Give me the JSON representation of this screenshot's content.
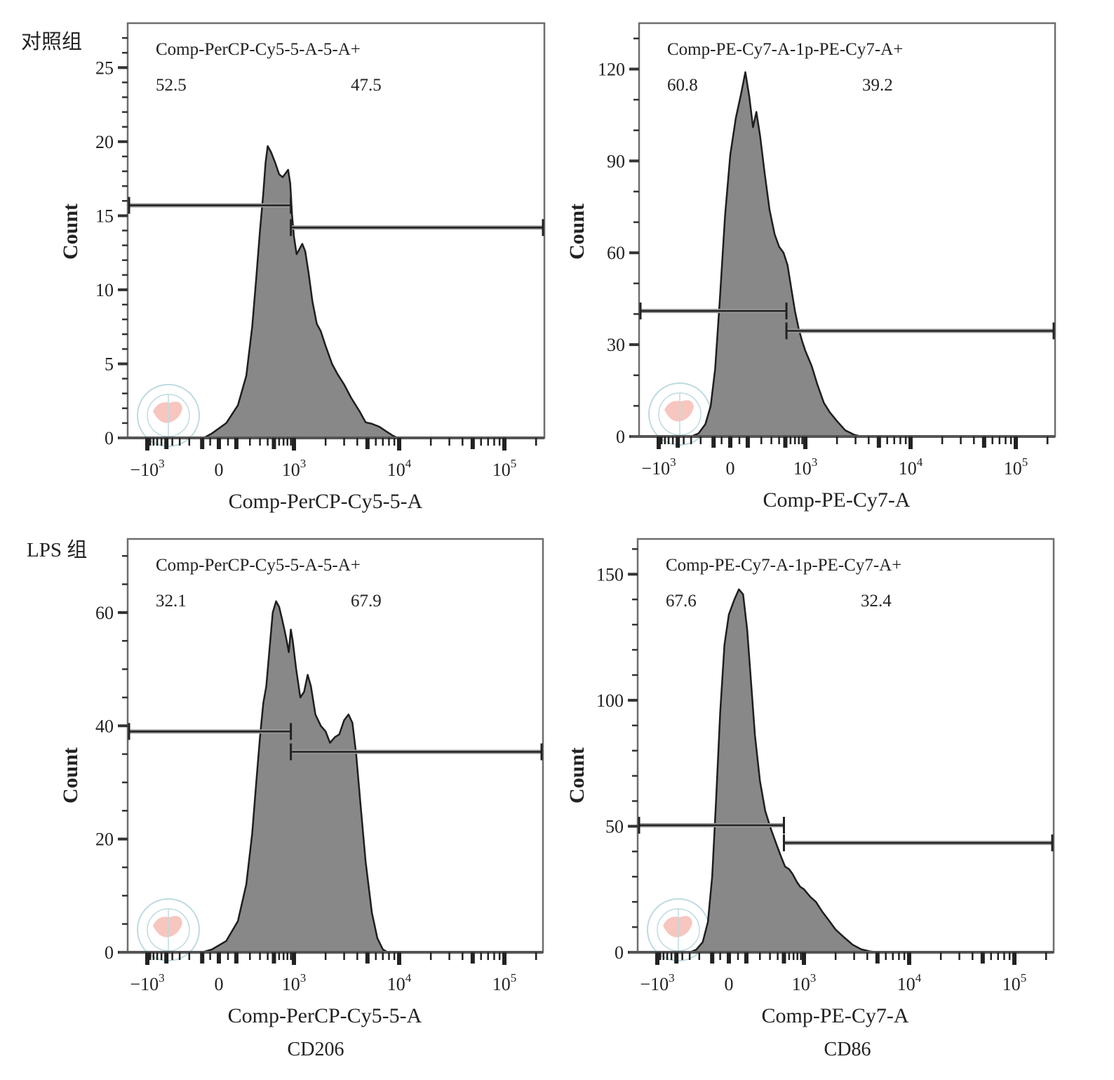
{
  "figure": {
    "group_labels": [
      "对照组",
      "LPS 组"
    ],
    "column_captions": [
      "CD206",
      "CD86"
    ],
    "colors": {
      "histogram_fill": "#888888",
      "histogram_stroke": "#1e1e1e",
      "frame": "#6e6e6e",
      "gate": "#222222",
      "watermark_ring": "#a9cfd6",
      "watermark_map": "#f4b4aa"
    },
    "watermark_icon": "chinese-medical-association-seal-icon"
  },
  "chart_data": [
    {
      "type": "area",
      "id": "control-cd206",
      "row": "对照组",
      "column": "CD206",
      "gate_title": "Comp-PerCP-Cy5-5-A-5-A+",
      "gate_percentages": [
        "52.5",
        "47.5"
      ],
      "xlabel": "Comp-PerCP-Cy5-5-A",
      "ylabel": "Count",
      "x_scale": "biexponential",
      "x_tick_labels": [
        {
          "base": "−10",
          "exp": "3",
          "value": -1000
        },
        {
          "base": "0",
          "exp": "",
          "value": 0
        },
        {
          "base": "10",
          "exp": "3",
          "value": 1000
        },
        {
          "base": "10",
          "exp": "4",
          "value": 10000
        },
        {
          "base": "10",
          "exp": "5",
          "value": 100000
        }
      ],
      "ylim": [
        0,
        28
      ],
      "y_ticks": [
        0,
        5,
        10,
        15,
        20,
        25
      ],
      "y_minor_step": 1,
      "gates": [
        {
          "name": "negative",
          "percent": 52.5,
          "from": "axis-min",
          "to": 900,
          "y": 15.7
        },
        {
          "name": "positive",
          "percent": 47.5,
          "from": 900,
          "to": "axis-max",
          "y": 14.2
        }
      ],
      "histogram": [
        [
          -90,
          0
        ],
        [
          -40,
          0.3
        ],
        [
          40,
          1
        ],
        [
          110,
          2.2
        ],
        [
          170,
          4.2
        ],
        [
          220,
          7.5
        ],
        [
          260,
          10.8
        ],
        [
          300,
          14
        ],
        [
          340,
          16.5
        ],
        [
          370,
          18.6
        ],
        [
          400,
          19.7
        ],
        [
          450,
          19.3
        ],
        [
          520,
          18.6
        ],
        [
          600,
          17.8
        ],
        [
          680,
          17.6
        ],
        [
          760,
          17.9
        ],
        [
          820,
          18.1
        ],
        [
          880,
          17.2
        ],
        [
          940,
          15
        ],
        [
          1000,
          13.6
        ],
        [
          1060,
          12.4
        ],
        [
          1120,
          12.7
        ],
        [
          1200,
          13.1
        ],
        [
          1280,
          12.6
        ],
        [
          1380,
          11.1
        ],
        [
          1500,
          9.2
        ],
        [
          1650,
          7.7
        ],
        [
          1800,
          7.2
        ],
        [
          2000,
          6.2
        ],
        [
          2300,
          5
        ],
        [
          2600,
          4.3
        ],
        [
          3000,
          3.6
        ],
        [
          3500,
          2.7
        ],
        [
          4200,
          1.8
        ],
        [
          4800,
          1.05
        ],
        [
          5500,
          0.95
        ],
        [
          6500,
          0.75
        ],
        [
          7500,
          0.45
        ],
        [
          8500,
          0.2
        ],
        [
          9600,
          0
        ]
      ]
    },
    {
      "type": "area",
      "id": "control-cd86",
      "row": "对照组",
      "column": "CD86",
      "gate_title": "Comp-PE-Cy7-A-1p-PE-Cy7-A+",
      "gate_percentages": [
        "60.8",
        "39.2"
      ],
      "xlabel": "Comp-PE-Cy7-A",
      "ylabel": "Count",
      "x_scale": "biexponential",
      "x_tick_labels": [
        {
          "base": "−10",
          "exp": "3",
          "value": -1000
        },
        {
          "base": "0",
          "exp": "",
          "value": 0
        },
        {
          "base": "10",
          "exp": "3",
          "value": 1000
        },
        {
          "base": "10",
          "exp": "4",
          "value": 10000
        },
        {
          "base": "10",
          "exp": "5",
          "value": 100000
        }
      ],
      "ylim": [
        0,
        135
      ],
      "y_ticks": [
        0,
        30,
        60,
        90,
        120
      ],
      "y_minor_step": 10,
      "gates": [
        {
          "name": "negative",
          "percent": 60.8,
          "from": "axis-min",
          "to": 520,
          "y": 41
        },
        {
          "name": "positive",
          "percent": 39.2,
          "from": 520,
          "to": "axis-max",
          "y": 34.5
        }
      ],
      "histogram": [
        [
          -300,
          0
        ],
        [
          -220,
          1
        ],
        [
          -160,
          4
        ],
        [
          -120,
          10
        ],
        [
          -90,
          22
        ],
        [
          -60,
          45
        ],
        [
          -30,
          72
        ],
        [
          0,
          92
        ],
        [
          30,
          104
        ],
        [
          60,
          112
        ],
        [
          85,
          119
        ],
        [
          110,
          111
        ],
        [
          135,
          101
        ],
        [
          160,
          106
        ],
        [
          190,
          98
        ],
        [
          230,
          86
        ],
        [
          280,
          74
        ],
        [
          340,
          66
        ],
        [
          400,
          62
        ],
        [
          470,
          60
        ],
        [
          540,
          56
        ],
        [
          620,
          48
        ],
        [
          700,
          41
        ],
        [
          800,
          35
        ],
        [
          900,
          31
        ],
        [
          1000,
          28
        ],
        [
          1150,
          23
        ],
        [
          1300,
          17
        ],
        [
          1500,
          11
        ],
        [
          1700,
          8
        ],
        [
          2000,
          5
        ],
        [
          2400,
          2
        ],
        [
          2900,
          0.6
        ],
        [
          3400,
          0
        ]
      ]
    },
    {
      "type": "area",
      "id": "lps-cd206",
      "row": "LPS 组",
      "column": "CD206",
      "gate_title": "Comp-PerCP-Cy5-5-A-5-A+",
      "gate_percentages": [
        "32.1",
        "67.9"
      ],
      "xlabel": "Comp-PerCP-Cy5-5-A",
      "ylabel": "Count",
      "x_scale": "biexponential",
      "x_tick_labels": [
        {
          "base": "−10",
          "exp": "3",
          "value": -1000
        },
        {
          "base": "0",
          "exp": "",
          "value": 0
        },
        {
          "base": "10",
          "exp": "3",
          "value": 1000
        },
        {
          "base": "10",
          "exp": "4",
          "value": 10000
        },
        {
          "base": "10",
          "exp": "5",
          "value": 100000
        }
      ],
      "ylim": [
        0,
        73
      ],
      "y_ticks": [
        0,
        20,
        40,
        60
      ],
      "y_minor_step": 5,
      "gates": [
        {
          "name": "negative",
          "percent": 32.1,
          "from": "axis-min",
          "to": 900,
          "y": 39
        },
        {
          "name": "positive",
          "percent": 67.9,
          "from": 900,
          "to": "axis-max",
          "y": 35.4
        }
      ],
      "histogram": [
        [
          -100,
          0
        ],
        [
          -40,
          0.5
        ],
        [
          40,
          2
        ],
        [
          110,
          5.5
        ],
        [
          170,
          12
        ],
        [
          220,
          21
        ],
        [
          260,
          30
        ],
        [
          300,
          38
        ],
        [
          340,
          44
        ],
        [
          380,
          47
        ],
        [
          430,
          54
        ],
        [
          480,
          60
        ],
        [
          540,
          62
        ],
        [
          600,
          61
        ],
        [
          660,
          59
        ],
        [
          720,
          57
        ],
        [
          780,
          55
        ],
        [
          840,
          53
        ],
        [
          900,
          57
        ],
        [
          960,
          55
        ],
        [
          1050,
          50
        ],
        [
          1150,
          45
        ],
        [
          1250,
          46
        ],
        [
          1350,
          49
        ],
        [
          1450,
          47
        ],
        [
          1600,
          42
        ],
        [
          1800,
          40
        ],
        [
          2000,
          39
        ],
        [
          2200,
          37
        ],
        [
          2450,
          38
        ],
        [
          2700,
          38.5
        ],
        [
          3000,
          41
        ],
        [
          3300,
          42
        ],
        [
          3600,
          40.5
        ],
        [
          3900,
          35
        ],
        [
          4300,
          26
        ],
        [
          4800,
          16
        ],
        [
          5500,
          7
        ],
        [
          6200,
          2.5
        ],
        [
          7000,
          0.5
        ],
        [
          7800,
          0
        ]
      ]
    },
    {
      "type": "area",
      "id": "lps-cd86",
      "row": "LPS 组",
      "column": "CD86",
      "gate_title": "Comp-PE-Cy7-A-1p-PE-Cy7-A+",
      "gate_percentages": [
        "67.6",
        "32.4"
      ],
      "xlabel": "Comp-PE-Cy7-A",
      "ylabel": "Count",
      "x_scale": "biexponential",
      "x_tick_labels": [
        {
          "base": "−10",
          "exp": "3",
          "value": -1000
        },
        {
          "base": "0",
          "exp": "",
          "value": 0
        },
        {
          "base": "10",
          "exp": "3",
          "value": 1000
        },
        {
          "base": "10",
          "exp": "4",
          "value": 10000
        },
        {
          "base": "10",
          "exp": "5",
          "value": 100000
        }
      ],
      "ylim": [
        0,
        164
      ],
      "y_ticks": [
        0,
        50,
        100,
        150
      ],
      "y_minor_step": 10,
      "gates": [
        {
          "name": "negative",
          "percent": 67.6,
          "from": "axis-min",
          "to": 500,
          "y": 50.4
        },
        {
          "name": "positive",
          "percent": 32.4,
          "from": 500,
          "to": "axis-max",
          "y": 43.4
        }
      ],
      "histogram": [
        [
          -300,
          0
        ],
        [
          -230,
          1
        ],
        [
          -170,
          4
        ],
        [
          -130,
          12
        ],
        [
          -100,
          30
        ],
        [
          -75,
          60
        ],
        [
          -50,
          95
        ],
        [
          -25,
          122
        ],
        [
          0,
          134
        ],
        [
          30,
          140
        ],
        [
          55,
          144
        ],
        [
          80,
          142
        ],
        [
          105,
          128
        ],
        [
          130,
          108
        ],
        [
          160,
          86
        ],
        [
          200,
          68
        ],
        [
          250,
          56
        ],
        [
          310,
          49
        ],
        [
          380,
          43
        ],
        [
          450,
          38
        ],
        [
          520,
          34
        ],
        [
          600,
          33
        ],
        [
          680,
          31
        ],
        [
          780,
          28
        ],
        [
          880,
          26
        ],
        [
          1000,
          25
        ],
        [
          1150,
          22
        ],
        [
          1300,
          20
        ],
        [
          1500,
          16
        ],
        [
          1700,
          13
        ],
        [
          2000,
          9
        ],
        [
          2400,
          6
        ],
        [
          2900,
          3
        ],
        [
          3500,
          1.2
        ],
        [
          4200,
          0.4
        ],
        [
          5000,
          0
        ]
      ]
    }
  ]
}
